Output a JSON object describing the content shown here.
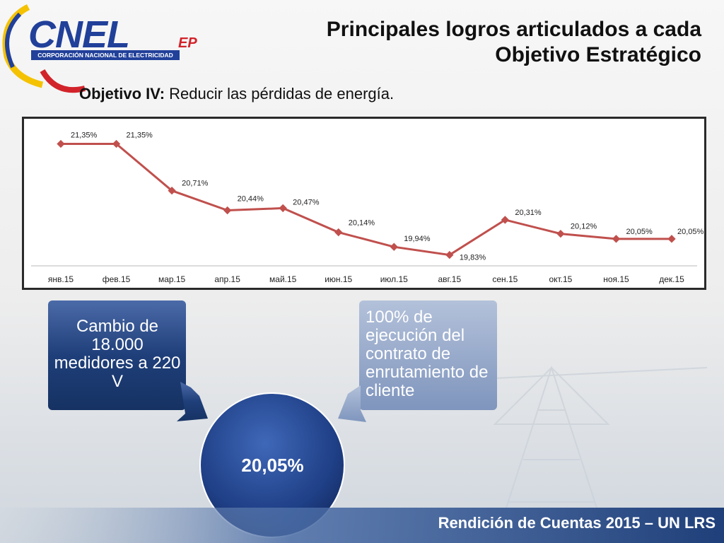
{
  "logo": {
    "name": "CNEL",
    "suffix": "EP",
    "subtitle": "CORPORACIÓN NACIONAL DE ELECTRICIDAD"
  },
  "title": {
    "line1": "Principales logros articulados a cada",
    "line2": "Objetivo Estratégico"
  },
  "objective": {
    "label": "Objetivo IV:",
    "text": " Reducir las pérdidas de energía."
  },
  "chart_data": {
    "type": "line",
    "categories": [
      "янв.15",
      "фев.15",
      "мар.15",
      "апр.15",
      "май.15",
      "июн.15",
      "июл.15",
      "авг.15",
      "сен.15",
      "окт.15",
      "ноя.15",
      "дек.15"
    ],
    "series": [
      {
        "values": [
          21.35,
          21.35,
          20.71,
          20.44,
          20.47,
          20.14,
          19.94,
          19.83,
          20.31,
          20.12,
          20.05,
          20.05
        ],
        "labels": [
          "21,35%",
          "21,35%",
          "20,71%",
          "20,44%",
          "20,47%",
          "20,14%",
          "19,94%",
          "19,83%",
          "20,31%",
          "20,12%",
          "20,05%",
          "20,05%"
        ],
        "color": "#c0504d"
      }
    ],
    "ylim": [
      18.5,
      21.5
    ],
    "grid": false,
    "legend": "none"
  },
  "callouts": {
    "left": "Cambio de 18.000 medidores a 220 V",
    "right": "100% de ejecución del contrato de enrutamiento de cliente",
    "center_value": "20,05%"
  },
  "colors": {
    "dark_blue": "#1f3f7a",
    "light_blue": "#8ea2c4",
    "line": "#c0504d"
  },
  "footer": "Rendición de Cuentas 2015 – UN LRS"
}
